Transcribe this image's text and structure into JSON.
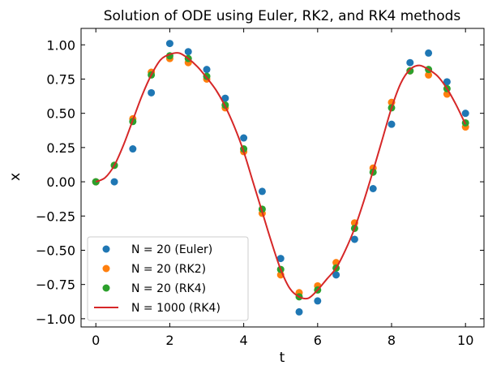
{
  "chart_data": {
    "type": "scatter",
    "title": "Solution of ODE using Euler, RK2, and RK4 methods",
    "xlabel": "t",
    "ylabel": "x",
    "xlim": [
      -0.4,
      10.5
    ],
    "ylim": [
      -1.06,
      1.12
    ],
    "xticks": [
      0,
      2,
      4,
      6,
      8,
      10
    ],
    "xtick_labels": [
      "0",
      "2",
      "4",
      "6",
      "8",
      "10"
    ],
    "yticks": [
      -1.0,
      -0.75,
      -0.5,
      -0.25,
      0.0,
      0.25,
      0.5,
      0.75,
      1.0
    ],
    "ytick_labels": [
      "−1.00",
      "−0.75",
      "−0.50",
      "−0.25",
      "0.00",
      "0.25",
      "0.50",
      "0.75",
      "1.00"
    ],
    "grid": false,
    "legend_position": "lower-left",
    "series": [
      {
        "name": "N = 20 (Euler)",
        "kind": "scatter",
        "color": "#1f77b4",
        "x": [
          0,
          0.5,
          1,
          1.5,
          2,
          2.5,
          3,
          3.5,
          4,
          4.5,
          5,
          5.5,
          6,
          6.5,
          7,
          7.5,
          8,
          8.5,
          9,
          9.5,
          10
        ],
        "y": [
          0.0,
          0.0,
          0.24,
          0.65,
          1.01,
          0.95,
          0.82,
          0.61,
          0.32,
          -0.07,
          -0.56,
          -0.95,
          -0.87,
          -0.68,
          -0.42,
          -0.05,
          0.42,
          0.87,
          0.94,
          0.73,
          0.5
        ]
      },
      {
        "name": "N = 20 (RK2)",
        "kind": "scatter",
        "color": "#ff7f0e",
        "x": [
          0,
          0.5,
          1,
          1.5,
          2,
          2.5,
          3,
          3.5,
          4,
          4.5,
          5,
          5.5,
          6,
          6.5,
          7,
          7.5,
          8,
          8.5,
          9,
          9.5,
          10
        ],
        "y": [
          0.0,
          0.12,
          0.46,
          0.8,
          0.9,
          0.87,
          0.75,
          0.54,
          0.22,
          -0.23,
          -0.68,
          -0.81,
          -0.76,
          -0.59,
          -0.3,
          0.1,
          0.58,
          0.81,
          0.78,
          0.64,
          0.4
        ]
      },
      {
        "name": "N = 20 (RK4)",
        "kind": "scatter",
        "color": "#2ca02c",
        "x": [
          0,
          0.5,
          1,
          1.5,
          2,
          2.5,
          3,
          3.5,
          4,
          4.5,
          5,
          5.5,
          6,
          6.5,
          7,
          7.5,
          8,
          8.5,
          9,
          9.5,
          10
        ],
        "y": [
          0.0,
          0.12,
          0.44,
          0.78,
          0.92,
          0.9,
          0.77,
          0.56,
          0.24,
          -0.2,
          -0.64,
          -0.84,
          -0.79,
          -0.63,
          -0.34,
          0.07,
          0.54,
          0.81,
          0.82,
          0.68,
          0.43
        ]
      },
      {
        "name": "N = 1000 (RK4)",
        "kind": "line",
        "color": "#d62728",
        "x": [
          0,
          0.25,
          0.5,
          0.75,
          1,
          1.25,
          1.5,
          1.75,
          2,
          2.25,
          2.5,
          2.75,
          3,
          3.25,
          3.5,
          3.75,
          4,
          4.25,
          4.5,
          4.75,
          5,
          5.25,
          5.5,
          5.75,
          6,
          6.25,
          6.5,
          6.75,
          7,
          7.25,
          7.5,
          7.75,
          8,
          8.25,
          8.5,
          8.75,
          9,
          9.25,
          9.5,
          9.75,
          10
        ],
        "y": [
          0.0,
          0.03,
          0.12,
          0.27,
          0.45,
          0.63,
          0.78,
          0.89,
          0.93,
          0.94,
          0.9,
          0.84,
          0.76,
          0.67,
          0.55,
          0.4,
          0.22,
          0.0,
          -0.22,
          -0.44,
          -0.64,
          -0.78,
          -0.84,
          -0.85,
          -0.79,
          -0.71,
          -0.63,
          -0.5,
          -0.34,
          -0.14,
          0.08,
          0.31,
          0.54,
          0.72,
          0.82,
          0.85,
          0.82,
          0.77,
          0.68,
          0.56,
          0.42
        ]
      }
    ]
  }
}
